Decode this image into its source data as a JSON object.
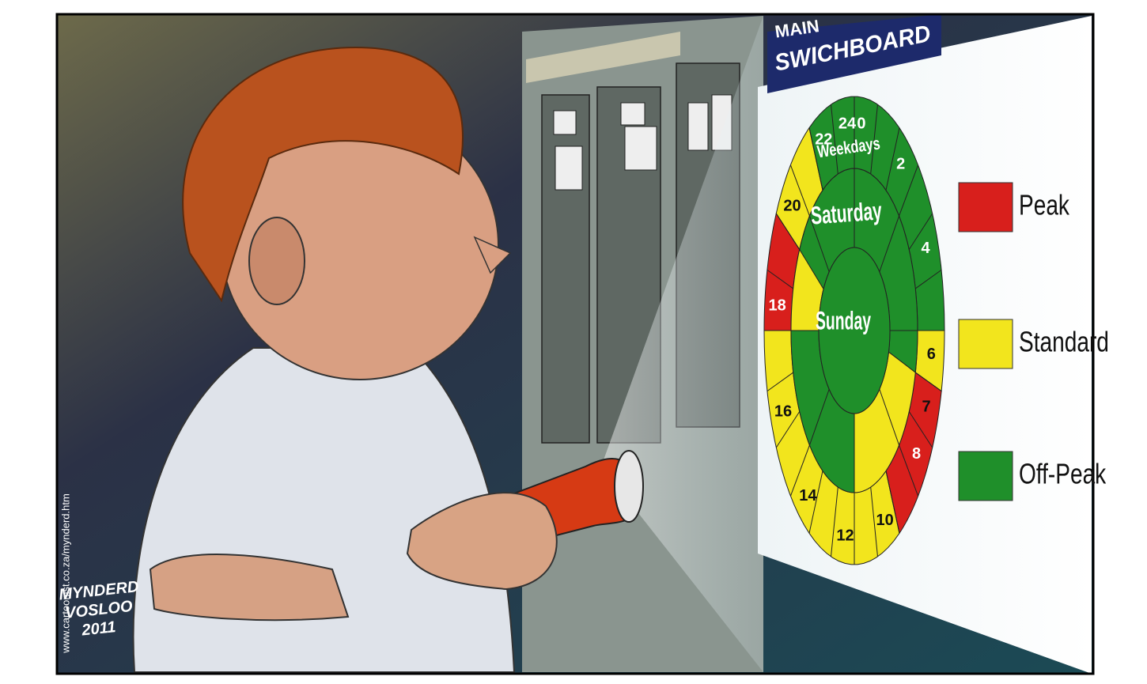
{
  "sign": {
    "line1": "MAIN",
    "line2": "SWICHBOARD"
  },
  "wheel": {
    "rings": [
      "Weekdays",
      "Saturday",
      "Sunday"
    ],
    "hours": [
      24,
      0,
      2,
      4,
      6,
      7,
      8,
      10,
      12,
      14,
      16,
      18,
      20,
      22
    ]
  },
  "legend": [
    {
      "label": "Peak",
      "color": "#d81f1c"
    },
    {
      "label": "Standard",
      "color": "#f2e51d"
    },
    {
      "label": "Off-Peak",
      "color": "#1f8f2a"
    }
  ],
  "credit": "www.cartoonist.co.za/mynderd.htm",
  "signature": [
    "MYNDERD",
    "VOSLOO",
    "2011"
  ]
}
